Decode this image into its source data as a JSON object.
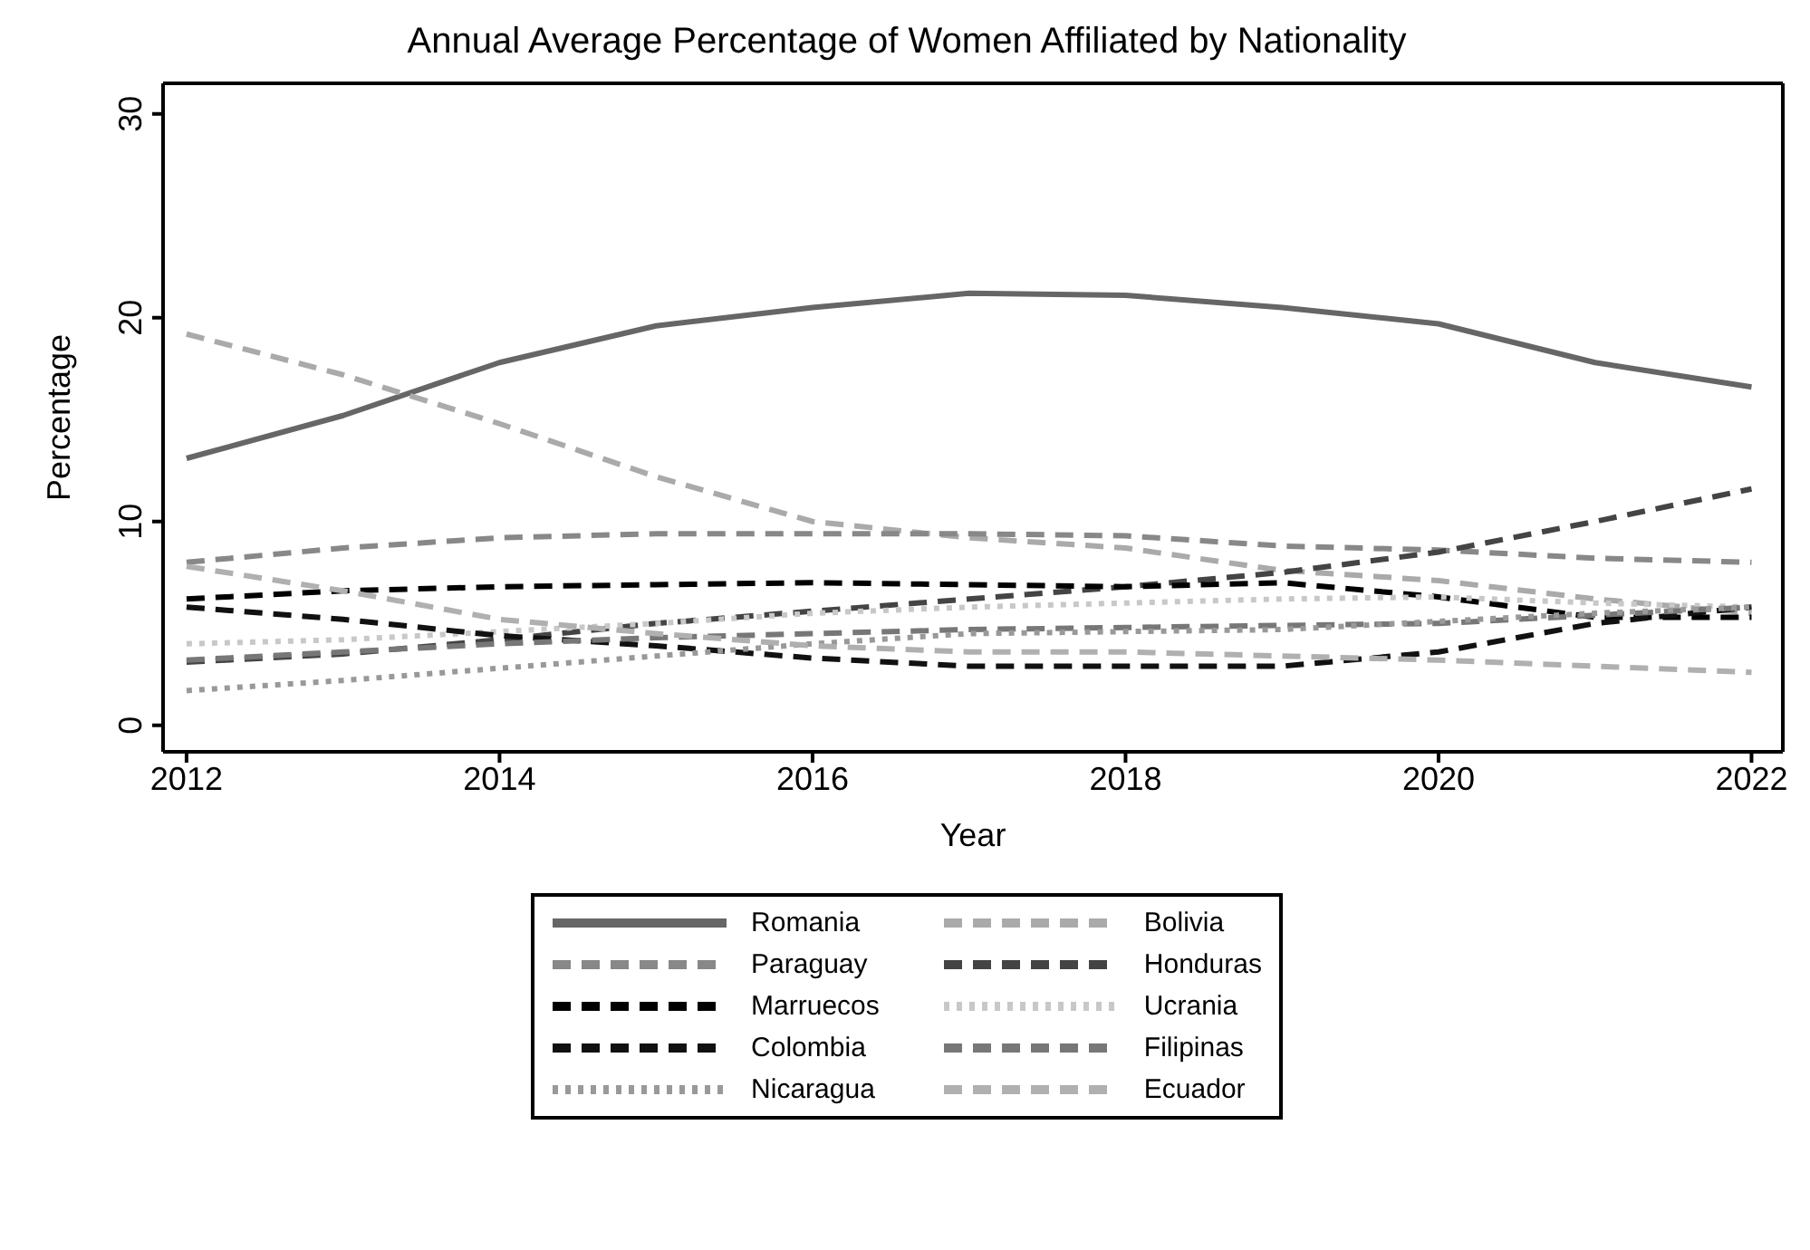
{
  "chart_data": {
    "type": "line",
    "title": "Annual Average Percentage of Women Affiliated by Nationality",
    "xlabel": "Year",
    "ylabel": "Percentage",
    "x": [
      2012,
      2013,
      2014,
      2015,
      2016,
      2017,
      2018,
      2019,
      2020,
      2021,
      2022
    ],
    "xlim": [
      2011.85,
      2022.2
    ],
    "xticks": [
      2012,
      2014,
      2016,
      2018,
      2020,
      2022
    ],
    "ylim": [
      -1.3,
      31.5
    ],
    "yticks": [
      0,
      10,
      20,
      30
    ],
    "grid": false,
    "legend": "bottom",
    "marker": "none",
    "series": [
      {
        "name": "Romania",
        "color": "#666666",
        "line_style": "solid",
        "values": [
          13.1,
          15.2,
          17.8,
          19.6,
          20.5,
          21.2,
          21.1,
          20.5,
          19.7,
          17.8,
          16.6
        ]
      },
      {
        "name": "Bolivia",
        "color": "#aaaaaa",
        "line_style": "dashed",
        "values": [
          19.2,
          17.2,
          14.8,
          12.2,
          10.0,
          9.2,
          8.7,
          7.6,
          7.1,
          6.2,
          5.5
        ]
      },
      {
        "name": "Paraguay",
        "color": "#888888",
        "line_style": "dashed",
        "values": [
          8.0,
          8.7,
          9.2,
          9.4,
          9.4,
          9.4,
          9.3,
          8.8,
          8.6,
          8.2,
          8.0
        ]
      },
      {
        "name": "Honduras",
        "color": "#444444",
        "line_style": "dashed",
        "values": [
          3.1,
          3.5,
          4.2,
          5.0,
          5.6,
          6.2,
          6.8,
          7.5,
          8.5,
          10.0,
          11.6
        ]
      },
      {
        "name": "Marruecos",
        "color": "#000000",
        "line_style": "dashed",
        "values": [
          6.2,
          6.6,
          6.8,
          6.9,
          7.0,
          6.9,
          6.8,
          7.0,
          6.3,
          5.3,
          5.3
        ]
      },
      {
        "name": "Ucrania",
        "color": "#c8c8c8",
        "line_style": "dotted",
        "values": [
          4.0,
          4.2,
          4.6,
          5.0,
          5.5,
          5.8,
          6.0,
          6.2,
          6.3,
          6.0,
          5.8
        ]
      },
      {
        "name": "Colombia",
        "color": "#111111",
        "line_style": "dashed",
        "values": [
          5.8,
          5.2,
          4.4,
          3.9,
          3.3,
          2.9,
          2.9,
          2.9,
          3.6,
          5.0,
          5.8
        ]
      },
      {
        "name": "Filipinas",
        "color": "#777777",
        "line_style": "dashed",
        "values": [
          3.2,
          3.6,
          4.0,
          4.3,
          4.5,
          4.7,
          4.8,
          4.9,
          5.0,
          5.4,
          5.8
        ]
      },
      {
        "name": "Nicaragua",
        "color": "#999999",
        "line_style": "dotted",
        "values": [
          1.7,
          2.2,
          2.8,
          3.4,
          4.0,
          4.5,
          4.6,
          4.7,
          5.1,
          5.5,
          5.8
        ]
      },
      {
        "name": "Ecuador",
        "color": "#b0b0b0",
        "line_style": "dashed",
        "values": [
          7.8,
          6.6,
          5.2,
          4.5,
          3.9,
          3.6,
          3.6,
          3.4,
          3.2,
          2.9,
          2.6
        ]
      }
    ]
  }
}
